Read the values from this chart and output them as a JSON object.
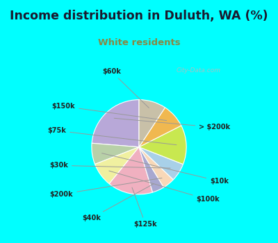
{
  "title": "Income distribution in Duluth, WA (%)",
  "subtitle": "White residents",
  "title_color": "#1a1a2e",
  "subtitle_color": "#888844",
  "watermark": "City-Data.com",
  "bg_cyan": "#00ffff",
  "bg_chart_color1": "#d8f0e8",
  "bg_chart_color2": "#f0f8f4",
  "labels": [
    "> $200k",
    "$10k",
    "$100k",
    "$125k",
    "$40k",
    "$200k",
    "$30k",
    "$75k",
    "$150k",
    "$60k"
  ],
  "values": [
    23,
    7,
    8,
    15,
    4,
    4,
    6,
    13,
    8,
    9
  ],
  "colors": [
    "#b8a8d8",
    "#b8d0a8",
    "#f0f0a0",
    "#f0b0c0",
    "#a8a8d0",
    "#f8d8b8",
    "#a8d0e8",
    "#c8e850",
    "#f0b850",
    "#c8c0a8"
  ],
  "startangle": 90
}
